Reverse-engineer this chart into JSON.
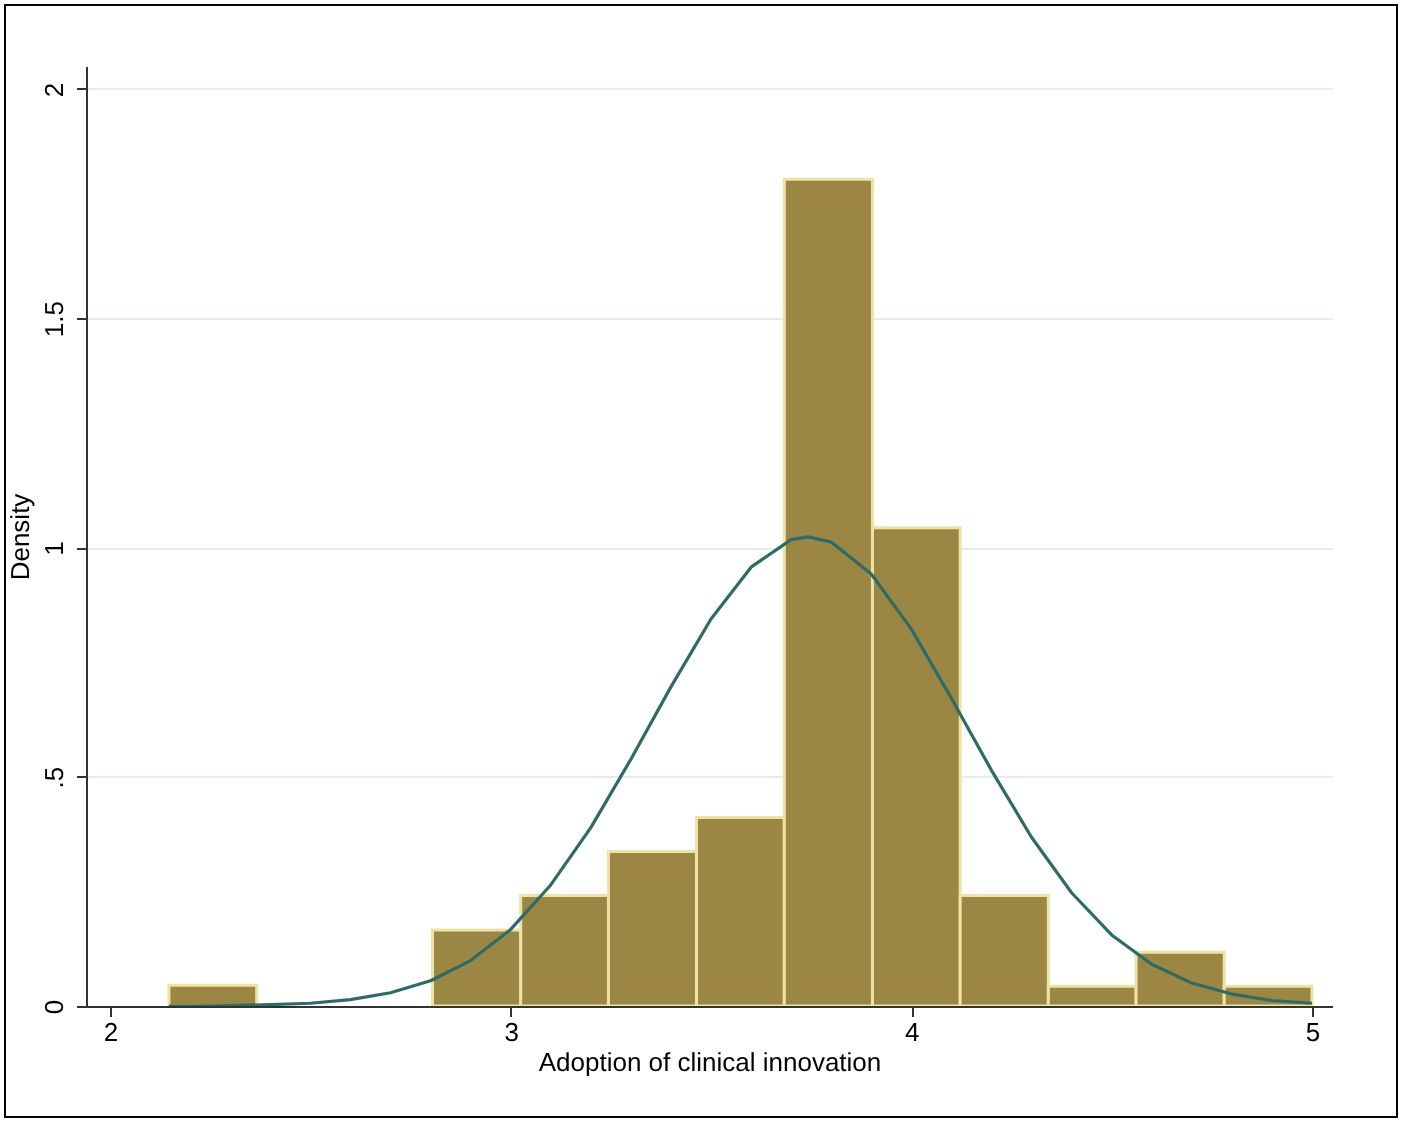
{
  "chart_data": {
    "type": "histogram",
    "xlabel": "Adoption of clinical innovation",
    "ylabel": "Density",
    "bins": [
      2.147,
      2.366,
      2.586,
      2.805,
      3.025,
      3.244,
      3.464,
      3.683,
      3.903,
      4.122,
      4.342,
      4.561,
      4.781,
      5.0
    ],
    "series": [
      {
        "color": "#9b8643",
        "values": [
          0.045,
          0,
          0,
          0.166,
          0.241,
          0.337,
          0.411,
          1.803,
          1.043,
          0.241,
          0.043,
          0.117,
          0.043
        ]
      },
      {
        "type": "line",
        "color": "#2e6b66",
        "x": [
          2.147,
          2.2,
          2.3,
          2.4,
          2.5,
          2.6,
          2.7,
          2.8,
          2.9,
          3.0,
          3.1,
          3.2,
          3.3,
          3.4,
          3.5,
          3.6,
          3.7,
          3.742,
          3.8,
          3.9,
          4.0,
          4.1,
          4.2,
          4.3,
          4.4,
          4.5,
          4.6,
          4.7,
          4.8,
          4.9,
          5.0
        ],
        "values": [
          0,
          0,
          0.001,
          0.003,
          0.006,
          0.014,
          0.029,
          0.055,
          0.099,
          0.167,
          0.264,
          0.389,
          0.538,
          0.696,
          0.844,
          0.957,
          1.017,
          1.023,
          1.012,
          0.942,
          0.822,
          0.671,
          0.514,
          0.368,
          0.247,
          0.155,
          0.091,
          0.05,
          0.026,
          0.012,
          0.006
        ]
      }
    ],
    "xlim": [
      1.94,
      5.05
    ],
    "xticks": [
      2,
      3,
      4,
      5
    ],
    "ylim": [
      0,
      2.05
    ],
    "yticks": [
      0,
      {
        "value": 0.5,
        "label": ".5"
      },
      1,
      1.5,
      2
    ],
    "grid": "y"
  }
}
